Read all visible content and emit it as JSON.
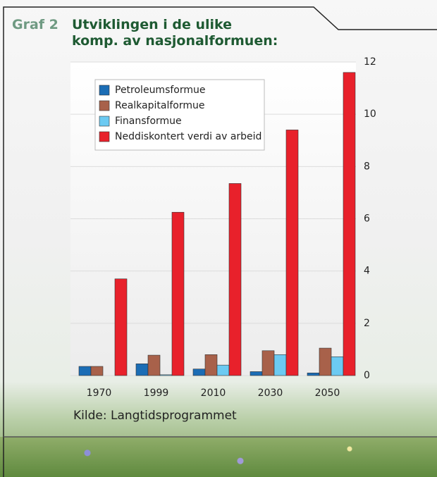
{
  "chart_data": {
    "type": "bar",
    "label": "Graf 2",
    "title": "Utviklingen i de ulike komp. av nasjonalformuen:",
    "source": "Kilde: Langtidsprogrammet",
    "categories": [
      "1970",
      "1999",
      "2010",
      "2030",
      "2050"
    ],
    "series": [
      {
        "name": "Petroleumsformue",
        "color": "#1b6db5",
        "values": [
          0.35,
          0.45,
          0.25,
          0.15,
          0.1
        ]
      },
      {
        "name": "Realkapitalformue",
        "color": "#a8614a",
        "values": [
          0.35,
          0.78,
          0.8,
          0.95,
          1.05
        ]
      },
      {
        "name": "Finansformue",
        "color": "#6ccaf2",
        "values": [
          0,
          0.03,
          0.4,
          0.8,
          0.72
        ]
      },
      {
        "name": "Neddiskontert verdi av arbeid",
        "color": "#e8212b",
        "values": [
          3.7,
          6.25,
          7.35,
          9.4,
          11.6
        ]
      }
    ],
    "ylim": [
      0,
      12
    ],
    "yticks": [
      0,
      2,
      4,
      6,
      8,
      10,
      12
    ],
    "grid": true,
    "legend": "top-left"
  }
}
